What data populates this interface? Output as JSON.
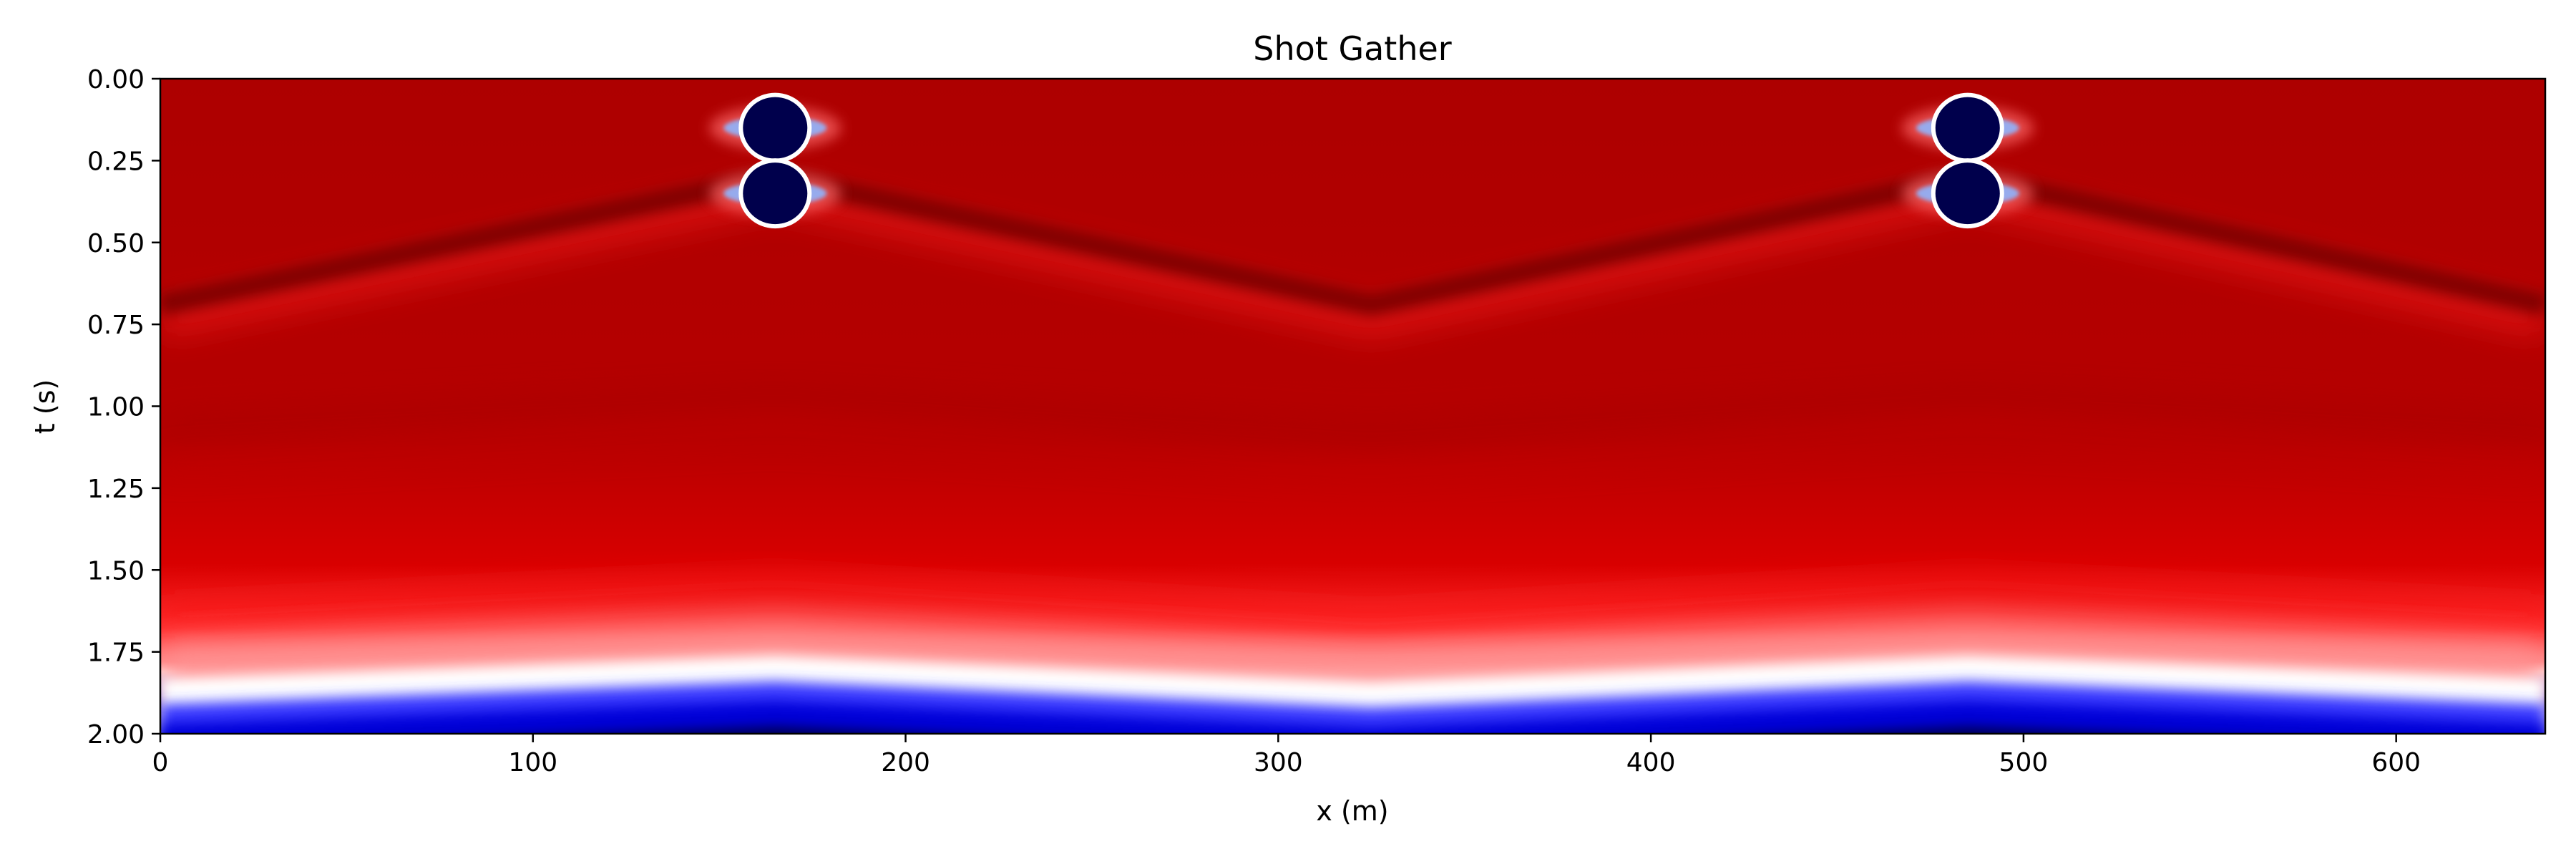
{
  "chart_data": {
    "type": "heatmap",
    "title": "Shot Gather",
    "xlabel": "x (m)",
    "ylabel": "t (s)",
    "xlim": [
      0,
      640
    ],
    "ylim": [
      2.0,
      0.0
    ],
    "y_inverted": true,
    "x_ticks": [
      "0",
      "100",
      "200",
      "300",
      "400",
      "500",
      "600"
    ],
    "x_tick_values": [
      0,
      100,
      200,
      300,
      400,
      500,
      600
    ],
    "y_ticks": [
      "0.00",
      "0.25",
      "0.50",
      "0.75",
      "1.00",
      "1.25",
      "1.50",
      "1.75",
      "2.00"
    ],
    "y_tick_values": [
      0.0,
      0.25,
      0.5,
      0.75,
      1.0,
      1.25,
      1.5,
      1.75,
      2.0
    ],
    "colormap": "seismic",
    "colormap_stops": [
      "#00004c",
      "#0000ff",
      "#ffffff",
      "#ff0000",
      "#800000"
    ],
    "grid": false,
    "sources": [
      {
        "x": 165,
        "t": 0.15,
        "name": "source-1-upper-lobe"
      },
      {
        "x": 165,
        "t": 0.35,
        "name": "source-1-lower-lobe"
      },
      {
        "x": 485,
        "t": 0.15,
        "name": "source-2-upper-lobe"
      },
      {
        "x": 485,
        "t": 0.35,
        "name": "source-2-lower-lobe"
      }
    ],
    "direct_wave_arrivals": [
      {
        "x": 0,
        "t": 0.69
      },
      {
        "x": 165,
        "t": 0.3
      },
      {
        "x": 325,
        "t": 0.69
      },
      {
        "x": 485,
        "t": 0.3
      },
      {
        "x": 640,
        "t": 0.69
      }
    ],
    "deep_reflection_top": [
      {
        "x": 0,
        "t": 1.85
      },
      {
        "x": 165,
        "t": 1.78
      },
      {
        "x": 325,
        "t": 1.86
      },
      {
        "x": 485,
        "t": 1.78
      },
      {
        "x": 640,
        "t": 1.85
      }
    ]
  }
}
